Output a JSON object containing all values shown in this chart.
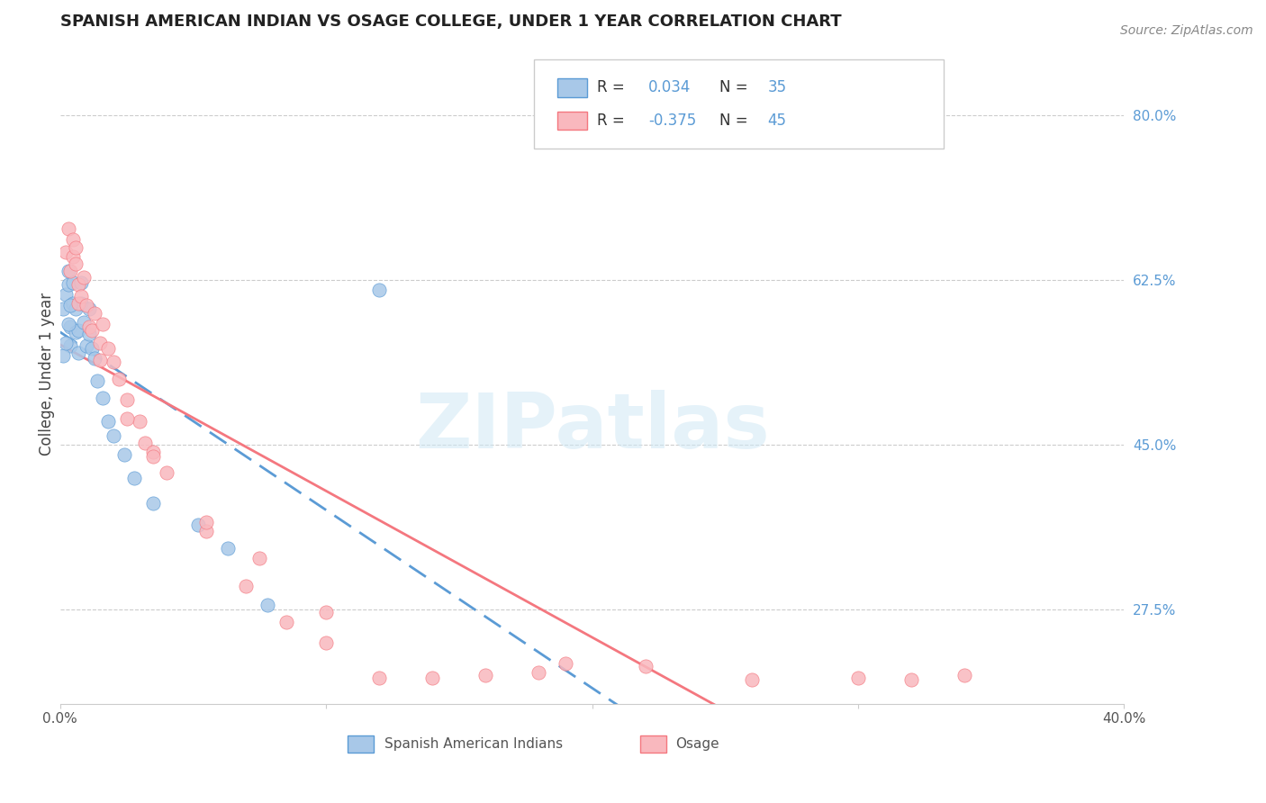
{
  "title": "SPANISH AMERICAN INDIAN VS OSAGE COLLEGE, UNDER 1 YEAR CORRELATION CHART",
  "source": "Source: ZipAtlas.com",
  "ylabel": "College, Under 1 year",
  "xlim": [
    0.0,
    0.4
  ],
  "ylim": [
    0.175,
    0.875
  ],
  "ytick_labels": [
    "27.5%",
    "45.0%",
    "62.5%",
    "80.0%"
  ],
  "ytick_values": [
    0.275,
    0.45,
    0.625,
    0.8
  ],
  "blue_color": "#5b9bd5",
  "pink_color": "#f4777f",
  "blue_scatter_color": "#a8c8e8",
  "pink_scatter_color": "#f9b8be",
  "R_blue": 0.034,
  "N_blue": 35,
  "R_pink": -0.375,
  "N_pink": 45,
  "watermark": "ZIPatlas",
  "legend_entries": [
    "Spanish American Indians",
    "Osage"
  ],
  "blue_points_x": [
    0.001,
    0.002,
    0.003,
    0.003,
    0.004,
    0.004,
    0.005,
    0.005,
    0.006,
    0.006,
    0.007,
    0.007,
    0.008,
    0.008,
    0.009,
    0.01,
    0.011,
    0.011,
    0.012,
    0.013,
    0.014,
    0.016,
    0.018,
    0.02,
    0.024,
    0.028,
    0.035,
    0.052,
    0.063,
    0.078,
    0.001,
    0.002,
    0.003,
    0.004,
    0.12
  ],
  "blue_points_y": [
    0.595,
    0.61,
    0.62,
    0.635,
    0.555,
    0.575,
    0.6,
    0.622,
    0.57,
    0.595,
    0.548,
    0.572,
    0.6,
    0.622,
    0.58,
    0.555,
    0.568,
    0.595,
    0.552,
    0.542,
    0.518,
    0.5,
    0.475,
    0.46,
    0.44,
    0.415,
    0.388,
    0.365,
    0.34,
    0.28,
    0.545,
    0.558,
    0.578,
    0.598,
    0.615
  ],
  "pink_points_x": [
    0.002,
    0.003,
    0.004,
    0.005,
    0.005,
    0.006,
    0.006,
    0.007,
    0.007,
    0.008,
    0.009,
    0.01,
    0.011,
    0.012,
    0.013,
    0.015,
    0.016,
    0.018,
    0.02,
    0.022,
    0.025,
    0.03,
    0.032,
    0.035,
    0.04,
    0.055,
    0.07,
    0.085,
    0.1,
    0.12,
    0.14,
    0.16,
    0.18,
    0.22,
    0.26,
    0.3,
    0.34,
    0.015,
    0.025,
    0.035,
    0.055,
    0.075,
    0.1,
    0.19,
    0.32
  ],
  "pink_points_y": [
    0.655,
    0.68,
    0.635,
    0.668,
    0.65,
    0.642,
    0.66,
    0.62,
    0.6,
    0.608,
    0.628,
    0.598,
    0.575,
    0.572,
    0.59,
    0.558,
    0.578,
    0.552,
    0.538,
    0.52,
    0.498,
    0.475,
    0.452,
    0.442,
    0.42,
    0.358,
    0.3,
    0.262,
    0.24,
    0.202,
    0.202,
    0.205,
    0.208,
    0.215,
    0.2,
    0.202,
    0.205,
    0.54,
    0.478,
    0.438,
    0.368,
    0.33,
    0.272,
    0.218,
    0.2
  ]
}
